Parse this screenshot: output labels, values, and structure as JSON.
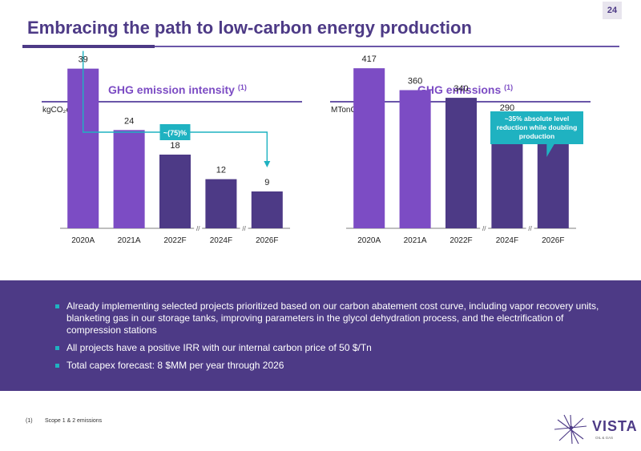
{
  "page_number": "24",
  "title": "Embracing the path to low-carbon energy production",
  "chart_data": [
    {
      "type": "bar",
      "title": "GHG emission intensity",
      "title_note": "(1)",
      "ylabel": "kgCO₂e/boe",
      "categories": [
        "2020A",
        "2021A",
        "2022F",
        "2024F",
        "2026F"
      ],
      "values": [
        39,
        24,
        18,
        12,
        9
      ],
      "data_labels": [
        "39",
        "24",
        "18",
        "12",
        "9"
      ],
      "ylim": [
        0,
        45
      ],
      "bar_colors": [
        "#7c4cc4",
        "#7c4cc4",
        "#4d3a86",
        "#4d3a86",
        "#4d3a86"
      ],
      "axis_breaks": [
        "//",
        "//"
      ],
      "annotation": "~(75)%",
      "annotation_color": "#1fb2c1"
    },
    {
      "type": "bar",
      "title": "GHG emissions",
      "title_note": "(1)",
      "ylabel": "MTonCO₂e",
      "categories": [
        "2020A",
        "2021A",
        "2022F",
        "2024F",
        "2026F"
      ],
      "values": [
        417,
        360,
        340,
        290,
        265
      ],
      "data_labels": [
        "417",
        "360",
        "340",
        "290",
        "265"
      ],
      "ylim": [
        0,
        480
      ],
      "bar_colors": [
        "#7c4cc4",
        "#7c4cc4",
        "#4d3a86",
        "#4d3a86",
        "#4d3a86"
      ],
      "axis_breaks": [
        "//",
        "//"
      ],
      "annotation": "~35% absolute level reduction while doubling production",
      "annotation_color": "#1fb2c1"
    }
  ],
  "bullets": [
    "Already implementing selected projects prioritized based on our carbon abatement cost curve, including vapor recovery units, blanketing gas in our storage tanks, improving parameters in the glycol dehydration process, and the electrification of compression stations",
    "All projects have a positive IRR with our internal carbon price of 50 $/Tn",
    "Total capex forecast: 8 $MM per year through 2026"
  ],
  "footnote": {
    "mark": "(1)",
    "text": "Scope 1 & 2 emissions"
  },
  "logo": {
    "name": "VISTA",
    "tagline": "OIL & GAS"
  },
  "colors": {
    "brand_dark": "#4d3a86",
    "brand_light": "#7c4cc4",
    "accent": "#1fb2c1"
  }
}
